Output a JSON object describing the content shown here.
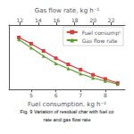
{
  "chart_data": {
    "type": "line",
    "xlabel": "Fuel consumption, kg h⁻¹",
    "x2label": "Gas flow rate, kg h⁻¹",
    "annotations": [
      "Fig. 9 Variation of residual char with fuel co",
      "rate and gas flow rate"
    ],
    "x": [
      4.5,
      5.0,
      5.5,
      6.0,
      6.5,
      7.0,
      7.5,
      8.0,
      8.5
    ],
    "series": [
      {
        "name": "Fuel consumpᵗ",
        "color": "#d44040",
        "marker": "square",
        "values": [
          88,
          82,
          75,
          68,
          62,
          57,
          52,
          48,
          44
        ]
      },
      {
        "name": "Gas flow rate",
        "color": "#60a030",
        "marker": "triangle",
        "values": [
          86,
          78,
          70,
          63,
          58,
          53,
          49,
          46,
          43
        ]
      }
    ],
    "xlim": [
      4.1,
      8.8
    ],
    "xticks": [
      5,
      6,
      7,
      8
    ],
    "x2lim": [
      10.8,
      23.5
    ],
    "x2ticks": [
      12,
      14,
      16,
      18,
      20,
      22
    ],
    "ylim": [
      38,
      100
    ],
    "yticks": [],
    "tick_labels": "x",
    "grid": false,
    "legend": "upper right"
  }
}
